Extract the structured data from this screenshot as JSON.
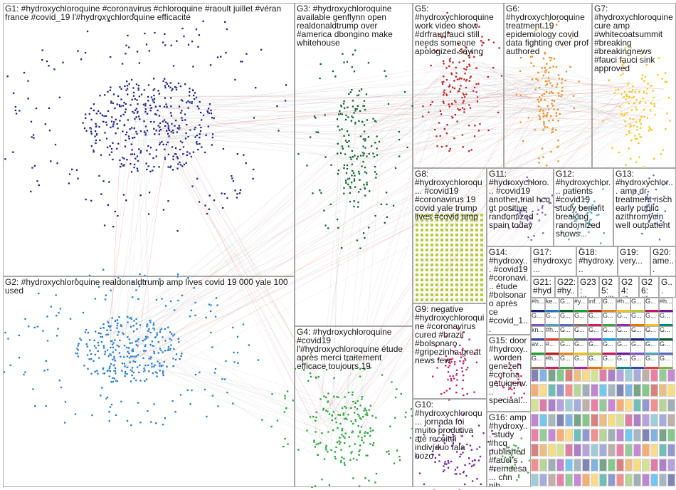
{
  "diagram": {
    "title": "",
    "groups": [
      {
        "id": "G1",
        "label": "G1: #hydroxychloroquine #coronavirus #chloroquine #raoult juillet #véran france #covid_19 l'#hydroxychloroquine efficacité",
        "color": "#1a237e"
      },
      {
        "id": "G2",
        "label": "G2: #hydroxychloroquine realdonaldtrump amp lives covid 19 000 yale 100 used",
        "color": "#1f78c8"
      },
      {
        "id": "G3",
        "label": "G3: #hydroxychloroquine available genflynn open realdonaldtrump over #america dbongino make whitehouse",
        "color": "#0b5d2a"
      },
      {
        "id": "G4",
        "label": "G4: #hydroxychloroquine #covid19 l'#hydroxychloroquine étude après merci traitement efficace toujours 19",
        "color": "#1e9e2f"
      },
      {
        "id": "G5",
        "label": "G5: #hydroxychloroquine work video show #drfraudfauci still needs someone apologized saying",
        "color": "#b71c1c"
      },
      {
        "id": "G6",
        "label": "G6: #hydroxychloroquine treatment 19 epidemiology covid data fighting over prof authored",
        "color": "#e08a1e"
      },
      {
        "id": "G7",
        "label": "G7: #hydroxychloroquine cure amp #whitecoatsummit #breaking #breakingnews #fauci fauci sink approved",
        "color": "#f2c318"
      },
      {
        "id": "G8",
        "label": "G8: #hydroxychloroqu... #covid19 #coronavirus 19 covid yale trump lives #covid amp",
        "color": "#b5c93b"
      },
      {
        "id": "G9",
        "label": "G9: negative #hydroxychloroquine #coronavirus cured #brazil #bolsonaro #gripezinha great news few",
        "color": "#c2185b"
      },
      {
        "id": "G10",
        "label": "G10: #hydroxychloroqu... jornada foi muito produtiva até receitei indivíduo fala bozo",
        "color": "#6a1b9a"
      },
      {
        "id": "G11",
        "label": "G11: #hydroxychloro... #covid19 another trial hcq gt positive randomized spain today",
        "color": "#7e57c2"
      },
      {
        "id": "G12",
        "label": "G12: #hydroxychlor... patients #covid19 study benefit breaking randomized shows...",
        "color": "#4fa3b8"
      },
      {
        "id": "G13",
        "label": "G13: #hydroxychlor... amp dr treatment risch early public azithromycin well outpatient",
        "color": "#5c6bc0"
      },
      {
        "id": "G14",
        "label": "G14: #hydroxy... #covid19 #coronavi... étude #bolsonaro après ce #covid_1...",
        "color": "#8d6e63"
      },
      {
        "id": "G15",
        "label": "G15: door #hydroxy... worden genezen #corona getuigenv... speciaal...",
        "color": "#d81b60"
      },
      {
        "id": "G16",
        "label": "G16: amp #hydroxy... study #hcq published #fauci's #remdesa... cnn nih...",
        "color": "#43a047"
      },
      {
        "id": "G17",
        "label": "G17: #hydroxyc...",
        "color": "#9c27b0"
      },
      {
        "id": "G18",
        "label": "G18: #hydroxy...",
        "color": "#ef6c00"
      },
      {
        "id": "G19",
        "label": "G19: very...",
        "color": "#fbc02d"
      },
      {
        "id": "G20",
        "label": "G20: ame...",
        "color": "#00897b"
      },
      {
        "id": "G21",
        "label": "G21: #hyd...",
        "color": "#3949ab"
      },
      {
        "id": "G22",
        "label": "G22: #hy...",
        "color": "#e53935"
      },
      {
        "id": "G23",
        "label": "G23: #hy...",
        "color": "#7cb342"
      },
      {
        "id": "G25",
        "label": "G25: still...",
        "color": "#546e7a"
      },
      {
        "id": "G24",
        "label": "G24: #hy...",
        "color": "#8e24aa"
      },
      {
        "id": "G26",
        "label": "G26: #hy...",
        "color": "#039be5"
      },
      {
        "id": "G_more",
        "label": "G...",
        "color": "#607d8b"
      }
    ],
    "tiny_cells": [
      "#h...",
      "ke...",
      "G...",
      "#y...",
      "inf...",
      "G...",
      "#h...",
      "G...",
      "G...",
      "#h...",
      "G...",
      "G...",
      "G...",
      "G...",
      "G...",
      "G...",
      "G...",
      "G...",
      "G...",
      "G...",
      "kn...",
      "#h...",
      "G...",
      "G...",
      "G...",
      "G...",
      "G...",
      "G...",
      "G...",
      "G...",
      "av...",
      "#...",
      "G...",
      "G...",
      "G...",
      "G...",
      "G...",
      "G...",
      "G...",
      "G...",
      "G...",
      "#h...",
      "G...",
      "G...",
      "G...",
      "G...",
      "G...",
      "G...",
      "G...",
      "G..."
    ]
  }
}
